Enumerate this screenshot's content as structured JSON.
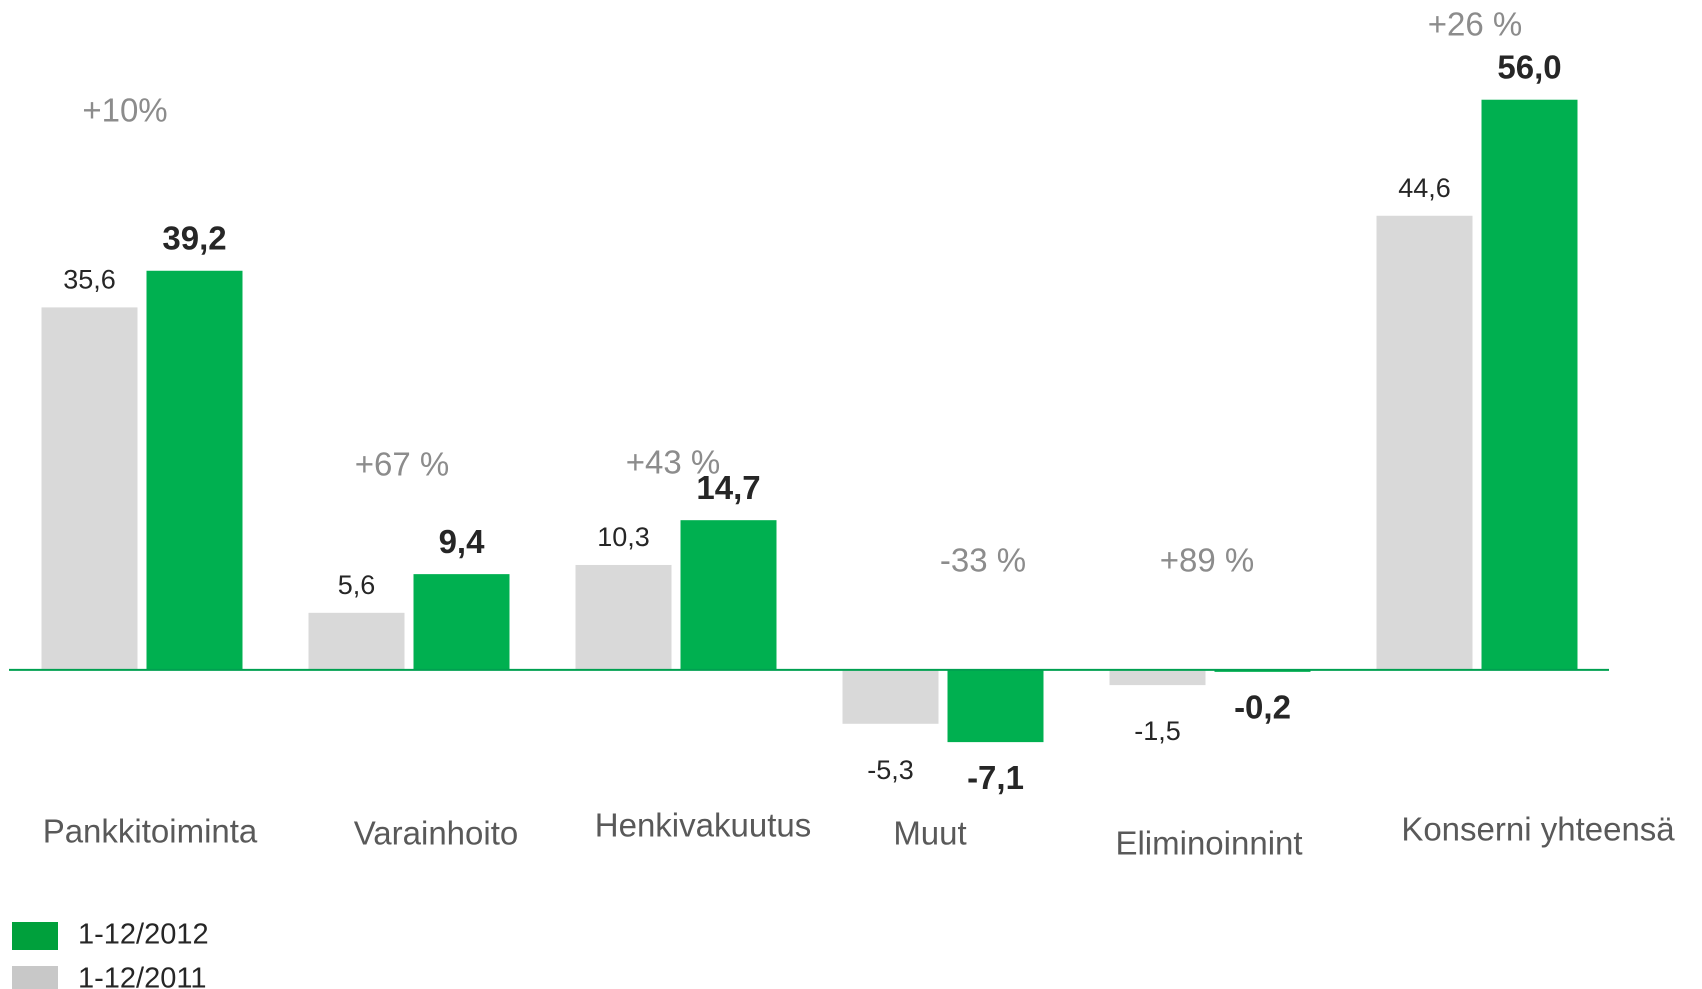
{
  "chart_data": {
    "type": "bar",
    "categories": [
      "Pankkitoiminta",
      "Varainhoito",
      "Henkivakuutus",
      "Muut",
      "Eliminoinnint",
      "Konserni yhteensä"
    ],
    "series": [
      {
        "name": "1-12/2011",
        "color": "#d9d9d9",
        "values": [
          35.6,
          5.6,
          10.3,
          -5.3,
          -1.5,
          44.6
        ],
        "value_labels": [
          "35,6",
          "5,6",
          "10,3",
          "-5,3",
          "-1,5",
          "44,6"
        ]
      },
      {
        "name": "1-12/2012",
        "color": "#00b050",
        "values": [
          39.2,
          9.4,
          14.7,
          -7.1,
          -0.2,
          56.0
        ],
        "value_labels": [
          "39,2",
          "9,4",
          "14,7",
          "-7,1",
          "-0,2",
          "56,0"
        ]
      }
    ],
    "annotations": [
      "+10%",
      "+67 %",
      "+43 %",
      "-33 %",
      "+89 %",
      "+26 %"
    ],
    "ylim": [
      -12,
      60
    ],
    "grid": false
  }
}
